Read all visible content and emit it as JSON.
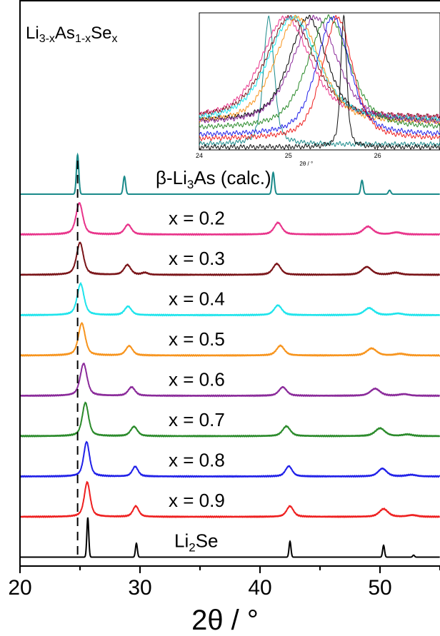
{
  "chart_data": [
    {
      "type": "line",
      "title": "Li3-xAs1-xSex",
      "title_parts": {
        "a": "Li",
        "a_sub": "3-x",
        "b": "As",
        "b_sub": "1-x",
        "c": "Se",
        "c_sub": "x"
      },
      "xlabel": "2θ / °",
      "ylabel": "",
      "xlim": [
        20,
        55
      ],
      "x_ticks": [
        20,
        30,
        40,
        50
      ],
      "x_tick_labels": [
        "20",
        "30",
        "40",
        "50"
      ],
      "reference_line": {
        "x": 24.8,
        "style": "dashed"
      },
      "series": [
        {
          "name": "β-Li3As (calc.)",
          "label_parts": {
            "pre": "β-Li",
            "sub": "3",
            "post": "As (calc.)"
          },
          "color": "#1a8a8a",
          "offset": 9,
          "kind": "calc",
          "peaks": [
            [
              24.8,
              1.0,
              0.1
            ],
            [
              28.7,
              0.45,
              0.1
            ],
            [
              41.1,
              0.55,
              0.1
            ],
            [
              48.5,
              0.35,
              0.1
            ],
            [
              50.8,
              0.1,
              0.1
            ]
          ]
        },
        {
          "name": "x = 0.2",
          "color": "#e8338a",
          "offset": 8,
          "kind": "exp",
          "peaks": [
            [
              24.95,
              0.8,
              0.35
            ],
            [
              29.0,
              0.25,
              0.35
            ],
            [
              41.5,
              0.3,
              0.4
            ],
            [
              49.0,
              0.2,
              0.5
            ],
            [
              51.4,
              0.05,
              0.5
            ]
          ]
        },
        {
          "name": "x = 0.3",
          "color": "#7a1418",
          "offset": 7,
          "kind": "exp",
          "peaks": [
            [
              25.0,
              0.82,
              0.35
            ],
            [
              28.95,
              0.25,
              0.35
            ],
            [
              30.4,
              0.05,
              0.3
            ],
            [
              41.4,
              0.28,
              0.4
            ],
            [
              48.9,
              0.2,
              0.5
            ],
            [
              51.3,
              0.05,
              0.5
            ]
          ]
        },
        {
          "name": "x = 0.4",
          "color": "#1ee4ec",
          "offset": 6,
          "kind": "exp",
          "peaks": [
            [
              25.05,
              0.8,
              0.35
            ],
            [
              29.0,
              0.22,
              0.35
            ],
            [
              41.5,
              0.25,
              0.4
            ],
            [
              49.1,
              0.18,
              0.5
            ],
            [
              51.5,
              0.04,
              0.5
            ]
          ]
        },
        {
          "name": "x = 0.5",
          "color": "#f7941d",
          "offset": 5,
          "kind": "exp",
          "peaks": [
            [
              25.15,
              0.82,
              0.35
            ],
            [
              29.1,
              0.24,
              0.35
            ],
            [
              41.7,
              0.25,
              0.4
            ],
            [
              49.3,
              0.18,
              0.5
            ],
            [
              51.7,
              0.04,
              0.5
            ]
          ]
        },
        {
          "name": "x = 0.6",
          "color": "#8a2a9a",
          "offset": 4,
          "kind": "exp",
          "peaks": [
            [
              25.3,
              0.82,
              0.35
            ],
            [
              29.3,
              0.22,
              0.35
            ],
            [
              41.9,
              0.22,
              0.4
            ],
            [
              49.6,
              0.18,
              0.5
            ],
            [
              52.0,
              0.04,
              0.5
            ]
          ]
        },
        {
          "name": "x = 0.7",
          "color": "#2a8a2a",
          "offset": 3,
          "kind": "exp",
          "peaks": [
            [
              25.45,
              0.85,
              0.32
            ],
            [
              29.5,
              0.24,
              0.35
            ],
            [
              42.2,
              0.25,
              0.4
            ],
            [
              50.0,
              0.2,
              0.5
            ],
            [
              52.3,
              0.04,
              0.5
            ]
          ]
        },
        {
          "name": "x = 0.8",
          "color": "#2020e8",
          "offset": 2,
          "kind": "exp",
          "peaks": [
            [
              25.55,
              0.88,
              0.3
            ],
            [
              29.6,
              0.25,
              0.3
            ],
            [
              42.4,
              0.26,
              0.35
            ],
            [
              50.2,
              0.2,
              0.45
            ],
            [
              52.6,
              0.04,
              0.5
            ]
          ]
        },
        {
          "name": "x = 0.9",
          "color": "#ee2020",
          "offset": 1,
          "kind": "exp",
          "peaks": [
            [
              25.6,
              0.88,
              0.3
            ],
            [
              29.65,
              0.27,
              0.3
            ],
            [
              42.5,
              0.27,
              0.35
            ],
            [
              50.3,
              0.2,
              0.45
            ],
            [
              52.7,
              0.04,
              0.5
            ]
          ]
        },
        {
          "name": "Li2Se",
          "label_parts": {
            "pre": "Li",
            "sub": "2",
            "post": "Se"
          },
          "color": "#000000",
          "offset": 0,
          "kind": "calc",
          "peaks": [
            [
              25.65,
              1.0,
              0.08
            ],
            [
              29.7,
              0.35,
              0.08
            ],
            [
              42.5,
              0.4,
              0.08
            ],
            [
              50.3,
              0.3,
              0.08
            ],
            [
              52.8,
              0.05,
              0.08
            ]
          ]
        }
      ]
    },
    {
      "type": "line",
      "title": "",
      "xlabel": "2θ / °",
      "ylabel": "",
      "xlim": [
        24,
        26.7
      ],
      "x_ticks": [
        24,
        25,
        26
      ],
      "x_tick_labels": [
        "24",
        "25",
        "26"
      ],
      "series": [
        {
          "color": "#1a8a8a",
          "center": 24.78,
          "width": 0.07,
          "base": 0.02
        },
        {
          "color": "#000000",
          "center": 25.22,
          "width": 0.25,
          "base": 0.2
        },
        {
          "color": "#e8338a",
          "center": 24.97,
          "width": 0.32,
          "base": 0.22
        },
        {
          "color": "#7a1418",
          "center": 25.02,
          "width": 0.32,
          "base": 0.22
        },
        {
          "color": "#1ee4ec",
          "center": 25.05,
          "width": 0.33,
          "base": 0.2
        },
        {
          "color": "#f7941d",
          "center": 25.1,
          "width": 0.3,
          "base": 0.18
        },
        {
          "color": "#8a2a9a",
          "center": 25.3,
          "width": 0.3,
          "base": 0.18
        },
        {
          "color": "#2a8a2a",
          "center": 25.45,
          "width": 0.28,
          "base": 0.14
        },
        {
          "color": "#2020e8",
          "center": 25.5,
          "width": 0.22,
          "base": 0.09
        },
        {
          "color": "#ee2020",
          "center": 25.55,
          "width": 0.2,
          "base": 0.06
        },
        {
          "color": "#101010",
          "center": 25.62,
          "width": 0.04,
          "base": 0.0
        }
      ]
    }
  ]
}
